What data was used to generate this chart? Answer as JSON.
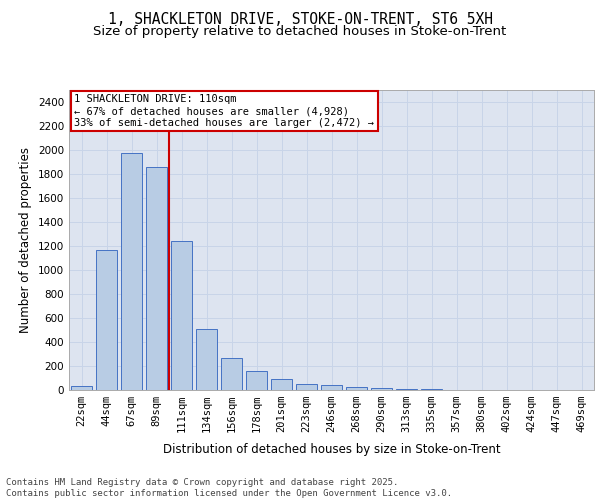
{
  "title_line1": "1, SHACKLETON DRIVE, STOKE-ON-TRENT, ST6 5XH",
  "title_line2": "Size of property relative to detached houses in Stoke-on-Trent",
  "xlabel": "Distribution of detached houses by size in Stoke-on-Trent",
  "ylabel": "Number of detached properties",
  "categories": [
    "22sqm",
    "44sqm",
    "67sqm",
    "89sqm",
    "111sqm",
    "134sqm",
    "156sqm",
    "178sqm",
    "201sqm",
    "223sqm",
    "246sqm",
    "268sqm",
    "290sqm",
    "313sqm",
    "335sqm",
    "357sqm",
    "380sqm",
    "402sqm",
    "424sqm",
    "447sqm",
    "469sqm"
  ],
  "values": [
    30,
    1170,
    1975,
    1855,
    1240,
    510,
    270,
    155,
    88,
    47,
    38,
    25,
    15,
    10,
    5,
    2,
    2,
    2,
    1,
    1,
    1
  ],
  "bar_color": "#b8cce4",
  "bar_edge_color": "#4472c4",
  "grid_color": "#c8d4e8",
  "background_color": "#dde4f0",
  "annotation_text": "1 SHACKLETON DRIVE: 110sqm\n← 67% of detached houses are smaller (4,928)\n33% of semi-detached houses are larger (2,472) →",
  "annotation_box_color": "#cc0000",
  "vline_color": "#cc0000",
  "ylim": [
    0,
    2500
  ],
  "yticks": [
    0,
    200,
    400,
    600,
    800,
    1000,
    1200,
    1400,
    1600,
    1800,
    2000,
    2200,
    2400
  ],
  "footnote": "Contains HM Land Registry data © Crown copyright and database right 2025.\nContains public sector information licensed under the Open Government Licence v3.0.",
  "title_fontsize": 10.5,
  "subtitle_fontsize": 9.5,
  "axis_label_fontsize": 8.5,
  "tick_fontsize": 7.5,
  "annotation_fontsize": 7.5,
  "footnote_fontsize": 6.5
}
